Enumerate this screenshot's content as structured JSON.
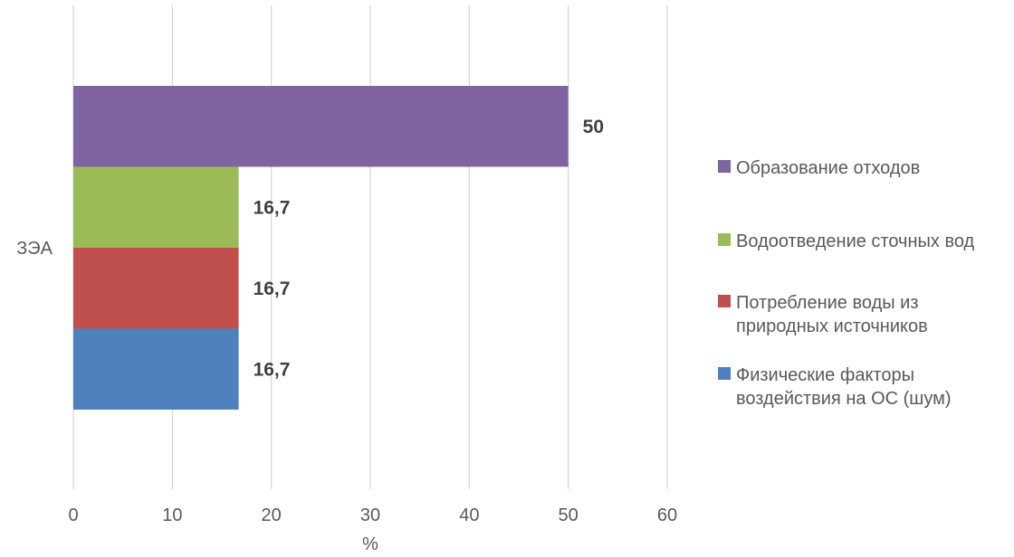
{
  "chart_data": {
    "type": "bar",
    "orientation": "horizontal",
    "categories": [
      "ЗЭА"
    ],
    "series": [
      {
        "name": "Физические факторы воздействия на ОС (шум)",
        "legend_lines": [
          "Физические факторы",
          "воздействия на ОС (шум)"
        ],
        "values": [
          16.7
        ],
        "label": "16,7",
        "color": "#4F81BD"
      },
      {
        "name": "Потребление воды из природных источников",
        "legend_lines": [
          "Потребление воды из",
          "природных источников"
        ],
        "values": [
          16.7
        ],
        "label": "16,7",
        "color": "#C0504D"
      },
      {
        "name": "Водоотведение сточных вод",
        "legend_lines": [
          "Водоотведение сточных вод"
        ],
        "values": [
          16.7
        ],
        "label": "16,7",
        "color": "#9BBB59"
      },
      {
        "name": "Образование отходов",
        "legend_lines": [
          "Образование отходов"
        ],
        "values": [
          50
        ],
        "label": "50",
        "color": "#8064A2"
      }
    ],
    "xlabel": "%",
    "ylabel": "",
    "xlim": [
      0,
      60
    ],
    "xticks": [
      "0",
      "10",
      "20",
      "30",
      "40",
      "50",
      "60"
    ],
    "grid": "vertical",
    "legend_position": "right"
  }
}
